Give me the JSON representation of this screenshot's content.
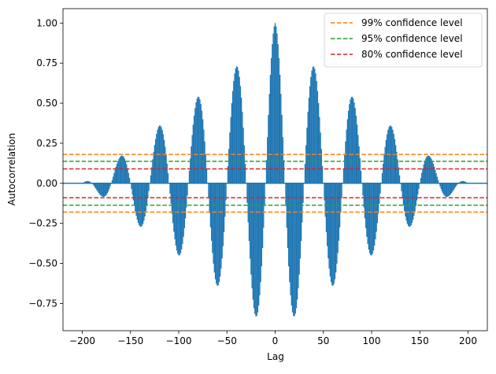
{
  "chart_data": {
    "type": "bar",
    "title": "",
    "xlabel": "Lag",
    "ylabel": "Autocorrelation",
    "xlim": [
      -220,
      220
    ],
    "ylim": [
      -0.92,
      1.09
    ],
    "xticks": [
      -200,
      -150,
      -100,
      -50,
      0,
      50,
      100,
      150,
      200
    ],
    "xtick_labels": [
      "−200",
      "−150",
      "−100",
      "−50",
      "0",
      "50",
      "100",
      "150",
      "200"
    ],
    "yticks": [
      -0.75,
      -0.5,
      -0.25,
      0.0,
      0.25,
      0.5,
      0.75,
      1.0
    ],
    "ytick_labels": [
      "−0.75",
      "−0.50",
      "−0.25",
      "0.00",
      "0.25",
      "0.50",
      "0.75",
      "1.00"
    ],
    "grid": false,
    "legend_position": "top-right",
    "series": [
      {
        "name": "",
        "kind": "stem-bars",
        "color": "#1f77b4",
        "lag_range": [
          -199,
          199
        ],
        "period": 40,
        "envelope_peaks": [
          {
            "lag": 0,
            "value": 1.0
          },
          {
            "lag": 20,
            "value": -0.83
          },
          {
            "lag": 40,
            "value": 0.73
          },
          {
            "lag": 60,
            "value": -0.64
          },
          {
            "lag": 80,
            "value": 0.54
          },
          {
            "lag": 100,
            "value": -0.45
          },
          {
            "lag": 120,
            "value": 0.36
          },
          {
            "lag": 140,
            "value": -0.27
          },
          {
            "lag": 160,
            "value": 0.17
          },
          {
            "lag": 180,
            "value": -0.08
          },
          {
            "lag": 200,
            "value": 0.0
          }
        ]
      }
    ],
    "confidence_levels": [
      {
        "name": "99% confidence level",
        "value": 0.18,
        "color": "#ff7f0e"
      },
      {
        "name": "95% confidence level",
        "value": 0.137,
        "color": "#2ca02c"
      },
      {
        "name": "80% confidence level",
        "value": 0.09,
        "color": "#d62728"
      }
    ]
  }
}
